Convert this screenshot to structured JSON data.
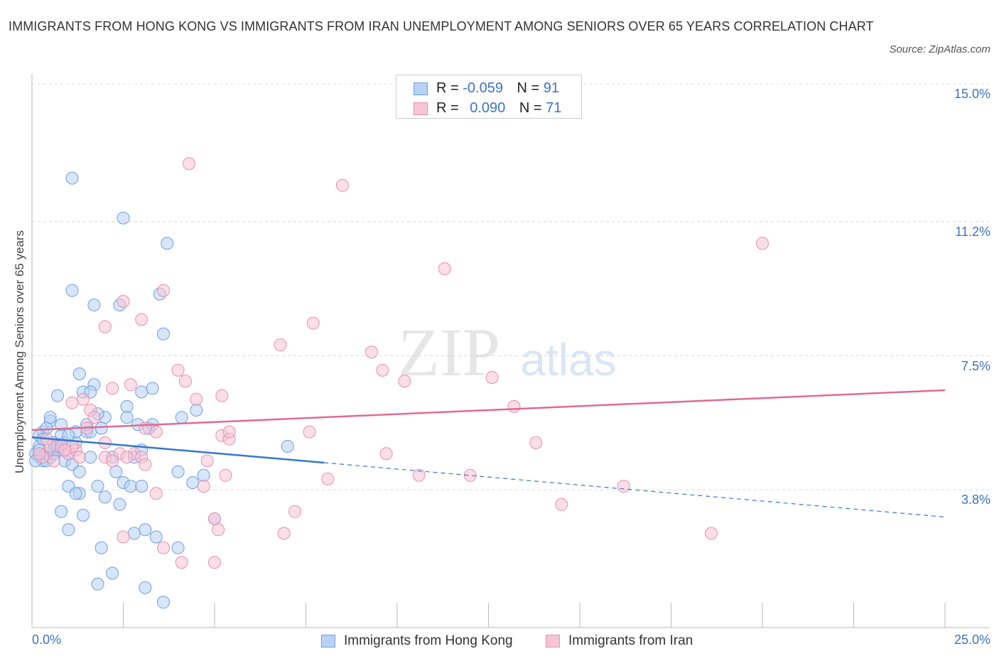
{
  "title": "IMMIGRANTS FROM HONG KONG VS IMMIGRANTS FROM IRAN UNEMPLOYMENT AMONG SENIORS OVER 65 YEARS CORRELATION CHART",
  "source": "Source: ZipAtlas.com",
  "watermark": {
    "zip": "ZIP",
    "atlas": "atlas"
  },
  "legend": {
    "rows": [
      {
        "r_label": "R =",
        "r_value": "-0.059",
        "n_label": "N =",
        "n_value": "91"
      },
      {
        "r_label": "R =",
        "r_value": "0.090",
        "n_label": "N =",
        "n_value": "71"
      }
    ]
  },
  "colors": {
    "hk_fill": "#b7d2f5",
    "hk_stroke": "#6f9fdc",
    "hk_line": "#3577d0",
    "iran_fill": "#f7c5d5",
    "iran_stroke": "#e88eab",
    "iran_line": "#e06b95",
    "tick_text": "#3b73c5"
  },
  "chart_data": {
    "type": "scatter",
    "title": "IMMIGRANTS FROM HONG KONG VS IMMIGRANTS FROM IRAN UNEMPLOYMENT AMONG SENIORS OVER 65 YEARS CORRELATION CHART",
    "xlabel": "",
    "ylabel": "Unemployment Among Seniors over 65 years",
    "xlim": [
      0,
      25
    ],
    "ylim": [
      0,
      15
    ],
    "x_tick_labels": [
      "0.0%",
      "25.0%"
    ],
    "y_ticks": [
      3.8,
      7.5,
      11.2,
      15.0
    ],
    "y_tick_labels": [
      "3.8%",
      "7.5%",
      "11.2%",
      "15.0%"
    ],
    "grid": "horizontal dashed",
    "legend_position": "top-center",
    "series": [
      {
        "name": "Immigrants from Hong Kong",
        "r": -0.059,
        "n": 91,
        "trend": {
          "solid": [
            [
              0,
              5.25
            ],
            [
              8,
              4.55
            ]
          ],
          "dashed": [
            [
              8,
              4.55
            ],
            [
              25,
              3.05
            ]
          ]
        },
        "points": [
          [
            1.1,
            12.4
          ],
          [
            2.5,
            11.3
          ],
          [
            3.7,
            10.6
          ],
          [
            1.1,
            9.3
          ],
          [
            3.5,
            9.2
          ],
          [
            1.7,
            8.9
          ],
          [
            2.4,
            8.9
          ],
          [
            3.6,
            8.1
          ],
          [
            1.3,
            7.0
          ],
          [
            1.4,
            6.5
          ],
          [
            1.7,
            6.7
          ],
          [
            0.7,
            6.4
          ],
          [
            2.6,
            6.1
          ],
          [
            3.3,
            6.6
          ],
          [
            3.0,
            6.5
          ],
          [
            4.5,
            6.0
          ],
          [
            0.5,
            5.7
          ],
          [
            0.8,
            5.3
          ],
          [
            1.5,
            5.4
          ],
          [
            2.0,
            5.8
          ],
          [
            2.6,
            5.8
          ],
          [
            3.2,
            5.5
          ],
          [
            4.1,
            5.8
          ],
          [
            1.9,
            5.5
          ],
          [
            0.3,
            5.4
          ],
          [
            0.4,
            5.5
          ],
          [
            0.6,
            5.1
          ],
          [
            0.8,
            5.0
          ],
          [
            0.9,
            4.9
          ],
          [
            1.0,
            4.8
          ],
          [
            1.2,
            5.1
          ],
          [
            1.6,
            5.4
          ],
          [
            0.2,
            5.0
          ],
          [
            0.1,
            4.8
          ],
          [
            0.2,
            4.7
          ],
          [
            0.3,
            4.6
          ],
          [
            0.4,
            4.6
          ],
          [
            0.5,
            4.7
          ],
          [
            0.6,
            4.8
          ],
          [
            0.7,
            4.9
          ],
          [
            0.9,
            4.6
          ],
          [
            1.1,
            4.5
          ],
          [
            1.3,
            4.3
          ],
          [
            1.6,
            4.7
          ],
          [
            2.2,
            4.7
          ],
          [
            2.8,
            4.7
          ],
          [
            3.0,
            4.9
          ],
          [
            1.0,
            3.9
          ],
          [
            1.3,
            3.7
          ],
          [
            1.8,
            3.9
          ],
          [
            2.0,
            3.6
          ],
          [
            2.5,
            4.0
          ],
          [
            2.7,
            3.9
          ],
          [
            3.0,
            3.9
          ],
          [
            4.0,
            4.3
          ],
          [
            4.4,
            4.0
          ],
          [
            4.7,
            4.2
          ],
          [
            0.8,
            3.2
          ],
          [
            1.4,
            3.1
          ],
          [
            2.4,
            3.4
          ],
          [
            1.0,
            2.7
          ],
          [
            2.8,
            2.6
          ],
          [
            3.1,
            2.7
          ],
          [
            3.4,
            2.5
          ],
          [
            1.9,
            2.2
          ],
          [
            4.0,
            2.2
          ],
          [
            2.2,
            1.5
          ],
          [
            1.8,
            1.2
          ],
          [
            3.1,
            1.1
          ],
          [
            3.6,
            0.7
          ],
          [
            5.0,
            3.0
          ],
          [
            7.0,
            5.0
          ],
          [
            0.1,
            4.6
          ],
          [
            0.5,
            5.8
          ],
          [
            0.9,
            5.1
          ],
          [
            0.2,
            5.3
          ],
          [
            1.2,
            5.4
          ],
          [
            2.3,
            4.3
          ],
          [
            1.5,
            5.6
          ],
          [
            0.6,
            4.9
          ],
          [
            0.3,
            5.2
          ],
          [
            0.8,
            5.6
          ],
          [
            1.0,
            5.3
          ],
          [
            0.4,
            4.8
          ],
          [
            0.7,
            5.0
          ],
          [
            1.8,
            5.9
          ],
          [
            2.9,
            5.6
          ],
          [
            0.2,
            4.9
          ],
          [
            1.6,
            6.5
          ],
          [
            3.3,
            5.6
          ],
          [
            1.2,
            3.7
          ]
        ]
      },
      {
        "name": "Immigrants from Iran",
        "r": 0.09,
        "n": 71,
        "trend": {
          "solid": [
            [
              0,
              5.45
            ],
            [
              25,
              6.55
            ]
          ]
        },
        "points": [
          [
            4.3,
            12.8
          ],
          [
            8.5,
            12.2
          ],
          [
            20.0,
            10.6
          ],
          [
            11.3,
            9.9
          ],
          [
            3.6,
            9.3
          ],
          [
            2.5,
            9.0
          ],
          [
            3.0,
            8.5
          ],
          [
            7.7,
            8.4
          ],
          [
            2.0,
            8.3
          ],
          [
            6.8,
            7.8
          ],
          [
            9.3,
            7.6
          ],
          [
            9.6,
            7.1
          ],
          [
            4.0,
            7.1
          ],
          [
            4.2,
            6.8
          ],
          [
            10.2,
            6.8
          ],
          [
            12.6,
            6.9
          ],
          [
            1.4,
            6.3
          ],
          [
            2.2,
            6.6
          ],
          [
            2.7,
            6.7
          ],
          [
            4.5,
            6.3
          ],
          [
            5.2,
            6.4
          ],
          [
            1.1,
            6.2
          ],
          [
            1.6,
            6.0
          ],
          [
            1.7,
            5.8
          ],
          [
            13.2,
            6.1
          ],
          [
            1.5,
            5.5
          ],
          [
            2.0,
            5.1
          ],
          [
            3.4,
            5.4
          ],
          [
            5.2,
            5.3
          ],
          [
            5.4,
            5.2
          ],
          [
            5.4,
            5.4
          ],
          [
            7.6,
            5.4
          ],
          [
            13.8,
            5.1
          ],
          [
            0.5,
            5.0
          ],
          [
            0.8,
            5.0
          ],
          [
            1.0,
            4.8
          ],
          [
            1.2,
            4.9
          ],
          [
            1.3,
            4.7
          ],
          [
            2.0,
            4.7
          ],
          [
            2.4,
            4.8
          ],
          [
            2.8,
            4.8
          ],
          [
            3.0,
            4.7
          ],
          [
            4.8,
            4.6
          ],
          [
            9.7,
            4.8
          ],
          [
            0.3,
            4.7
          ],
          [
            0.6,
            4.6
          ],
          [
            2.2,
            4.6
          ],
          [
            3.1,
            4.5
          ],
          [
            5.3,
            4.2
          ],
          [
            8.1,
            4.1
          ],
          [
            10.6,
            4.2
          ],
          [
            12.0,
            4.2
          ],
          [
            16.2,
            3.9
          ],
          [
            4.7,
            3.9
          ],
          [
            3.4,
            3.7
          ],
          [
            14.5,
            3.4
          ],
          [
            7.2,
            3.2
          ],
          [
            5.0,
            3.0
          ],
          [
            5.1,
            2.7
          ],
          [
            2.5,
            2.5
          ],
          [
            6.9,
            2.6
          ],
          [
            18.6,
            2.6
          ],
          [
            3.6,
            2.2
          ],
          [
            4.1,
            1.8
          ],
          [
            5.0,
            1.8
          ],
          [
            0.2,
            4.8
          ],
          [
            0.4,
            5.2
          ],
          [
            1.1,
            5.0
          ],
          [
            3.1,
            5.5
          ],
          [
            0.9,
            4.9
          ],
          [
            2.6,
            4.7
          ]
        ]
      }
    ]
  },
  "bottom_legend": [
    "Immigrants from Hong Kong",
    "Immigrants from Iran"
  ]
}
